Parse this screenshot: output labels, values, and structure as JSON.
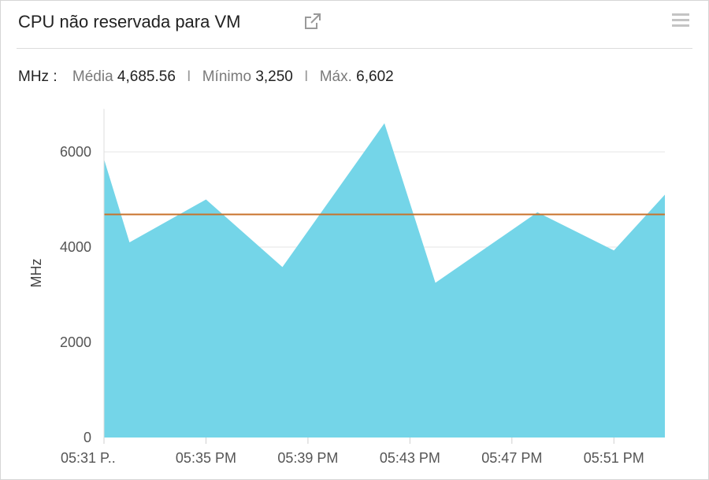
{
  "widget": {
    "title": "CPU não reservada para VM",
    "popout_icon": "external-link-icon",
    "menu_icon": "hamburger-menu-icon"
  },
  "stats": {
    "unit": "MHz :",
    "avg_label": "Média",
    "avg_value": "4,685.56",
    "min_label": "Mínimo",
    "min_value": "3,250",
    "max_label": "Máx.",
    "max_value": "6,602",
    "separator": "I"
  },
  "chart_data": {
    "type": "area",
    "ylabel": "MHz",
    "ylim": [
      0,
      6900
    ],
    "yticks": [
      0,
      2000,
      4000,
      6000
    ],
    "x_tick_labels": [
      "05:31 P..",
      "05:35 PM",
      "05:39 PM",
      "05:43 PM",
      "05:47 PM",
      "05:51 PM"
    ],
    "x": [
      "05:31 PM",
      "05:32 PM",
      "05:35 PM",
      "05:38 PM",
      "05:42 PM",
      "05:44 PM",
      "05:48 PM",
      "05:51 PM",
      "05:53 PM"
    ],
    "series": [
      {
        "values": [
          5850,
          4100,
          5000,
          3580,
          6602,
          3250,
          4730,
          3930,
          5100
        ],
        "color": "#74d5e8"
      }
    ],
    "average_line": 4685.56,
    "average_line_color": "#c8722a",
    "grid": true
  }
}
